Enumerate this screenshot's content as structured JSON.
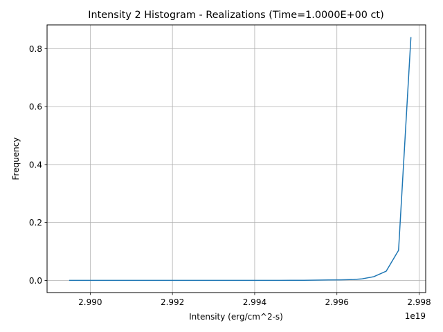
{
  "chart_data": {
    "type": "line",
    "title": "Intensity 2 Histogram - Realizations (Time=1.0000E+00 ct)",
    "xlabel": "Intensity (erg/cm^2-s)",
    "ylabel": "Frequency",
    "x_offset_label": "1e19",
    "x_scale": 1e+19,
    "xlim": [
      2.98895,
      2.99816
    ],
    "ylim": [
      -0.042,
      0.882
    ],
    "xticks": [
      2.99,
      2.992,
      2.994,
      2.996,
      2.998
    ],
    "xtick_labels": [
      "2.990",
      "2.992",
      "2.994",
      "2.996",
      "2.998"
    ],
    "yticks": [
      0.0,
      0.2,
      0.4,
      0.6,
      0.8
    ],
    "ytick_labels": [
      "0.0",
      "0.2",
      "0.4",
      "0.6",
      "0.8"
    ],
    "grid": true,
    "series": [
      {
        "color": "#1f77b4",
        "x": [
          2.9895,
          2.9898,
          2.9901,
          2.9904,
          2.9907,
          2.991,
          2.9913,
          2.9916,
          2.9919,
          2.9922,
          2.9925,
          2.9928,
          2.9931,
          2.9934,
          2.9937,
          2.994,
          2.9943,
          2.9946,
          2.9949,
          2.9952,
          2.9955,
          2.9958,
          2.9961,
          2.9964,
          2.9966,
          2.9969,
          2.9972,
          2.9975,
          2.9978
        ],
        "y": [
          0.0,
          0.0,
          0.0,
          0.0,
          0.0,
          0.0,
          0.0,
          0.0,
          0.0,
          0.0,
          0.0,
          0.0,
          0.0,
          0.0,
          0.0,
          0.0,
          0.0,
          0.0,
          0.0005,
          0.0005,
          0.001,
          0.0015,
          0.002,
          0.003,
          0.005,
          0.013,
          0.032,
          0.104,
          0.838
        ]
      }
    ]
  }
}
